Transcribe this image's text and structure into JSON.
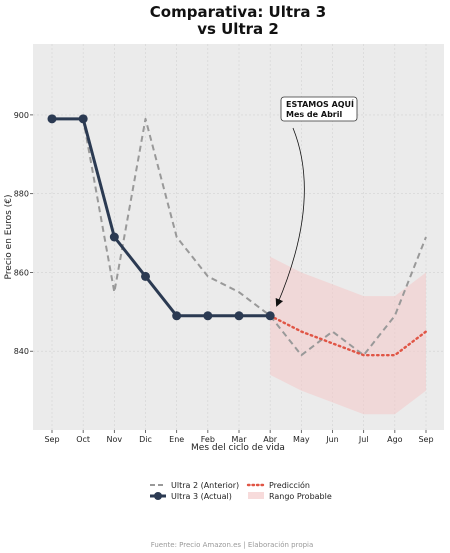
{
  "chart_data": {
    "type": "line",
    "title_line1": "Comparativa: Ultra 3",
    "title_line2": "vs Ultra 2",
    "xlabel": "Mes del ciclo de vida",
    "ylabel": "Precio en Euros (€)",
    "categories": [
      "Sep",
      "Oct",
      "Nov",
      "Dic",
      "Ene",
      "Feb",
      "Mar",
      "Abr",
      "May",
      "Jun",
      "Jul",
      "Ago",
      "Sep"
    ],
    "ylim": [
      820,
      918
    ],
    "yticks": [
      840,
      860,
      880,
      900
    ],
    "grid": true,
    "series": [
      {
        "name": "Ultra 2 (Anterior)",
        "style": "dashed",
        "color": "#999999",
        "values": [
          899,
          899,
          855,
          899,
          869,
          859,
          855,
          849,
          839,
          845,
          839,
          849,
          869
        ]
      },
      {
        "name": "Ultra 3 (Actual)",
        "style": "solid-markers",
        "color": "#2b3a52",
        "values": [
          899,
          899,
          869,
          859,
          849,
          849,
          849,
          849,
          null,
          null,
          null,
          null,
          null
        ]
      },
      {
        "name": "Predicción",
        "style": "dotted",
        "color": "#e05545",
        "values": [
          null,
          null,
          null,
          null,
          null,
          null,
          null,
          849,
          845,
          842,
          839,
          839,
          845
        ]
      }
    ],
    "band": {
      "name": "Rango Probable",
      "color": "#f4cccc",
      "upper": [
        null,
        null,
        null,
        null,
        null,
        null,
        null,
        864,
        860,
        857,
        854,
        854,
        860
      ],
      "lower": [
        null,
        null,
        null,
        null,
        null,
        null,
        null,
        834,
        830,
        827,
        824,
        824,
        830
      ]
    },
    "annotation": {
      "line1": "ESTAMOS AQUÍ",
      "line2": "Mes de Abril",
      "target_category": "Abr",
      "target_value": 849
    },
    "legend_position": "bottom-center",
    "source": "Fuente: Precio Amazon.es | Elaboración propia"
  }
}
